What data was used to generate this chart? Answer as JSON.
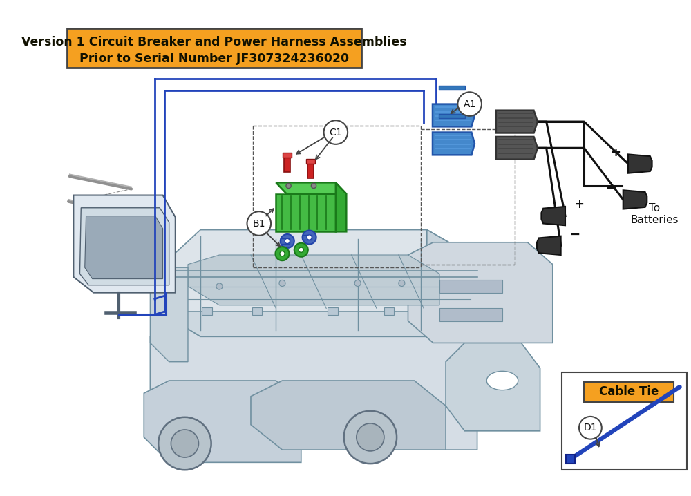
{
  "title_line1": "Version 1 Circuit Breaker and Power Harness Assemblies",
  "title_line2": "Prior to Serial Number JF307324236020",
  "title_bg": "#F5A020",
  "title_border": "#444444",
  "title_fontsize": 12.5,
  "orange_color": "#F5A020",
  "blue_color": "#2244BB",
  "black_color": "#111111",
  "green_color": "#228B22",
  "red_color": "#CC2222",
  "gray_color": "#888888",
  "light_gray": "#CCCCCC",
  "dark_gray": "#444444",
  "bg_color": "#FFFFFF",
  "cable_tie_label": "Cable Tie",
  "to_batteries_text": "To\nBatteries"
}
